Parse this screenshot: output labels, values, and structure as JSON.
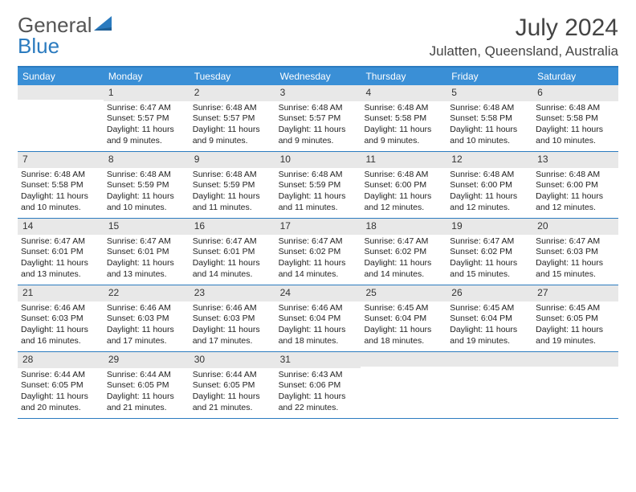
{
  "logo": {
    "text1": "General",
    "text2": "Blue"
  },
  "title": {
    "month": "July 2024",
    "location": "Julatten, Queensland, Australia"
  },
  "colors": {
    "brand_blue": "#3a8fd6",
    "border_blue": "#2b7bbf",
    "header_gray": "#e8e8e8",
    "text": "#222222",
    "title_text": "#444444"
  },
  "weekdays": [
    "Sunday",
    "Monday",
    "Tuesday",
    "Wednesday",
    "Thursday",
    "Friday",
    "Saturday"
  ],
  "weeks": [
    [
      {
        "n": "",
        "sr": "",
        "ss": "",
        "dl": ""
      },
      {
        "n": "1",
        "sr": "Sunrise: 6:47 AM",
        "ss": "Sunset: 5:57 PM",
        "dl": "Daylight: 11 hours and 9 minutes."
      },
      {
        "n": "2",
        "sr": "Sunrise: 6:48 AM",
        "ss": "Sunset: 5:57 PM",
        "dl": "Daylight: 11 hours and 9 minutes."
      },
      {
        "n": "3",
        "sr": "Sunrise: 6:48 AM",
        "ss": "Sunset: 5:57 PM",
        "dl": "Daylight: 11 hours and 9 minutes."
      },
      {
        "n": "4",
        "sr": "Sunrise: 6:48 AM",
        "ss": "Sunset: 5:58 PM",
        "dl": "Daylight: 11 hours and 9 minutes."
      },
      {
        "n": "5",
        "sr": "Sunrise: 6:48 AM",
        "ss": "Sunset: 5:58 PM",
        "dl": "Daylight: 11 hours and 10 minutes."
      },
      {
        "n": "6",
        "sr": "Sunrise: 6:48 AM",
        "ss": "Sunset: 5:58 PM",
        "dl": "Daylight: 11 hours and 10 minutes."
      }
    ],
    [
      {
        "n": "7",
        "sr": "Sunrise: 6:48 AM",
        "ss": "Sunset: 5:58 PM",
        "dl": "Daylight: 11 hours and 10 minutes."
      },
      {
        "n": "8",
        "sr": "Sunrise: 6:48 AM",
        "ss": "Sunset: 5:59 PM",
        "dl": "Daylight: 11 hours and 10 minutes."
      },
      {
        "n": "9",
        "sr": "Sunrise: 6:48 AM",
        "ss": "Sunset: 5:59 PM",
        "dl": "Daylight: 11 hours and 11 minutes."
      },
      {
        "n": "10",
        "sr": "Sunrise: 6:48 AM",
        "ss": "Sunset: 5:59 PM",
        "dl": "Daylight: 11 hours and 11 minutes."
      },
      {
        "n": "11",
        "sr": "Sunrise: 6:48 AM",
        "ss": "Sunset: 6:00 PM",
        "dl": "Daylight: 11 hours and 12 minutes."
      },
      {
        "n": "12",
        "sr": "Sunrise: 6:48 AM",
        "ss": "Sunset: 6:00 PM",
        "dl": "Daylight: 11 hours and 12 minutes."
      },
      {
        "n": "13",
        "sr": "Sunrise: 6:48 AM",
        "ss": "Sunset: 6:00 PM",
        "dl": "Daylight: 11 hours and 12 minutes."
      }
    ],
    [
      {
        "n": "14",
        "sr": "Sunrise: 6:47 AM",
        "ss": "Sunset: 6:01 PM",
        "dl": "Daylight: 11 hours and 13 minutes."
      },
      {
        "n": "15",
        "sr": "Sunrise: 6:47 AM",
        "ss": "Sunset: 6:01 PM",
        "dl": "Daylight: 11 hours and 13 minutes."
      },
      {
        "n": "16",
        "sr": "Sunrise: 6:47 AM",
        "ss": "Sunset: 6:01 PM",
        "dl": "Daylight: 11 hours and 14 minutes."
      },
      {
        "n": "17",
        "sr": "Sunrise: 6:47 AM",
        "ss": "Sunset: 6:02 PM",
        "dl": "Daylight: 11 hours and 14 minutes."
      },
      {
        "n": "18",
        "sr": "Sunrise: 6:47 AM",
        "ss": "Sunset: 6:02 PM",
        "dl": "Daylight: 11 hours and 14 minutes."
      },
      {
        "n": "19",
        "sr": "Sunrise: 6:47 AM",
        "ss": "Sunset: 6:02 PM",
        "dl": "Daylight: 11 hours and 15 minutes."
      },
      {
        "n": "20",
        "sr": "Sunrise: 6:47 AM",
        "ss": "Sunset: 6:03 PM",
        "dl": "Daylight: 11 hours and 15 minutes."
      }
    ],
    [
      {
        "n": "21",
        "sr": "Sunrise: 6:46 AM",
        "ss": "Sunset: 6:03 PM",
        "dl": "Daylight: 11 hours and 16 minutes."
      },
      {
        "n": "22",
        "sr": "Sunrise: 6:46 AM",
        "ss": "Sunset: 6:03 PM",
        "dl": "Daylight: 11 hours and 17 minutes."
      },
      {
        "n": "23",
        "sr": "Sunrise: 6:46 AM",
        "ss": "Sunset: 6:03 PM",
        "dl": "Daylight: 11 hours and 17 minutes."
      },
      {
        "n": "24",
        "sr": "Sunrise: 6:46 AM",
        "ss": "Sunset: 6:04 PM",
        "dl": "Daylight: 11 hours and 18 minutes."
      },
      {
        "n": "25",
        "sr": "Sunrise: 6:45 AM",
        "ss": "Sunset: 6:04 PM",
        "dl": "Daylight: 11 hours and 18 minutes."
      },
      {
        "n": "26",
        "sr": "Sunrise: 6:45 AM",
        "ss": "Sunset: 6:04 PM",
        "dl": "Daylight: 11 hours and 19 minutes."
      },
      {
        "n": "27",
        "sr": "Sunrise: 6:45 AM",
        "ss": "Sunset: 6:05 PM",
        "dl": "Daylight: 11 hours and 19 minutes."
      }
    ],
    [
      {
        "n": "28",
        "sr": "Sunrise: 6:44 AM",
        "ss": "Sunset: 6:05 PM",
        "dl": "Daylight: 11 hours and 20 minutes."
      },
      {
        "n": "29",
        "sr": "Sunrise: 6:44 AM",
        "ss": "Sunset: 6:05 PM",
        "dl": "Daylight: 11 hours and 21 minutes."
      },
      {
        "n": "30",
        "sr": "Sunrise: 6:44 AM",
        "ss": "Sunset: 6:05 PM",
        "dl": "Daylight: 11 hours and 21 minutes."
      },
      {
        "n": "31",
        "sr": "Sunrise: 6:43 AM",
        "ss": "Sunset: 6:06 PM",
        "dl": "Daylight: 11 hours and 22 minutes."
      },
      {
        "n": "",
        "sr": "",
        "ss": "",
        "dl": ""
      },
      {
        "n": "",
        "sr": "",
        "ss": "",
        "dl": ""
      },
      {
        "n": "",
        "sr": "",
        "ss": "",
        "dl": ""
      }
    ]
  ]
}
